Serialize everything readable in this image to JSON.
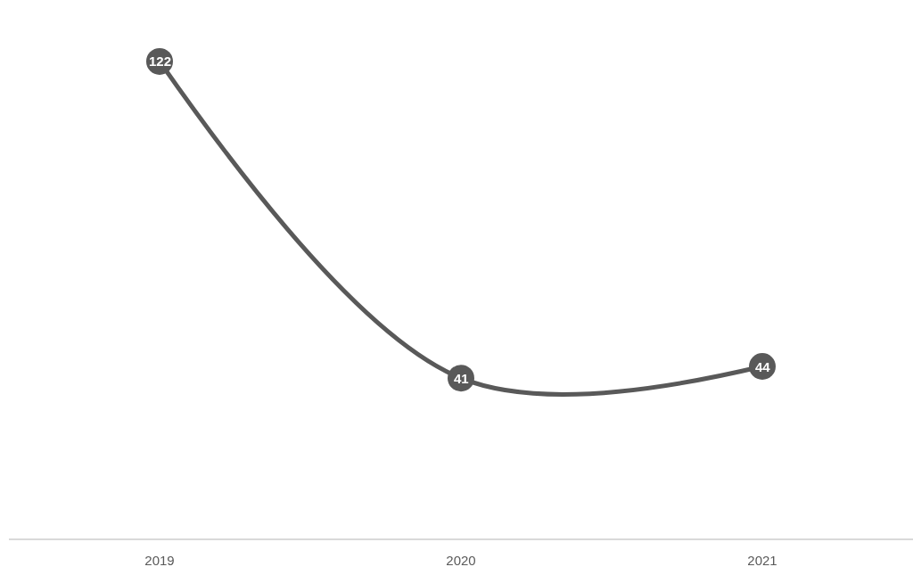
{
  "chart_data": {
    "type": "line",
    "categories": [
      "2019",
      "2020",
      "2021"
    ],
    "series": [
      {
        "color": "#595959",
        "values": [
          122,
          41,
          44
        ]
      }
    ],
    "tick_labels": "x",
    "data_labels": true,
    "marker": "circle",
    "line_style": "solid"
  }
}
